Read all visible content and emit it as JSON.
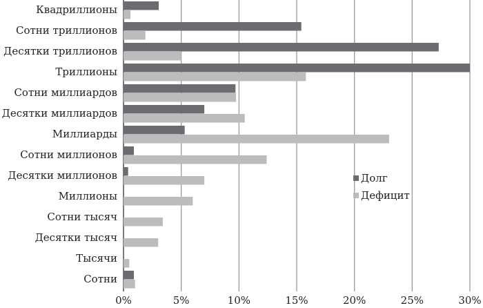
{
  "chart_data": {
    "type": "bar",
    "orientation": "horizontal",
    "categories": [
      "Квадриллионы",
      "Сотни триллионов",
      "Десятки триллионов",
      "Триллионы",
      "Сотни миллиардов",
      "Десятки миллиардов",
      "Миллиарды",
      "Сотни миллионов",
      "Десятки миллионов",
      "Миллионы",
      "Сотни тысяч",
      "Десятки тысяч",
      "Тысячи",
      "Сотни"
    ],
    "series": [
      {
        "name": "Долг",
        "color": "#6b6c70",
        "values": [
          3.05,
          15.4,
          27.3,
          30.0,
          9.7,
          7.0,
          5.3,
          0.9,
          0.4,
          0,
          0,
          0,
          0,
          0.9
        ]
      },
      {
        "name": "Дефицит",
        "color": "#bbbcbe",
        "values": [
          0.6,
          1.9,
          5.0,
          15.8,
          9.75,
          10.5,
          23.0,
          12.4,
          7.0,
          6.0,
          3.4,
          3.0,
          0.5,
          1.0
        ]
      }
    ],
    "xlim": [
      0,
      30
    ],
    "xticks": [
      "0%",
      "5%",
      "10%",
      "15%",
      "20%",
      "25%",
      "30%"
    ],
    "grid": "vertical",
    "legend": "right-middle",
    "xlabel": "",
    "ylabel": "",
    "title": ""
  }
}
